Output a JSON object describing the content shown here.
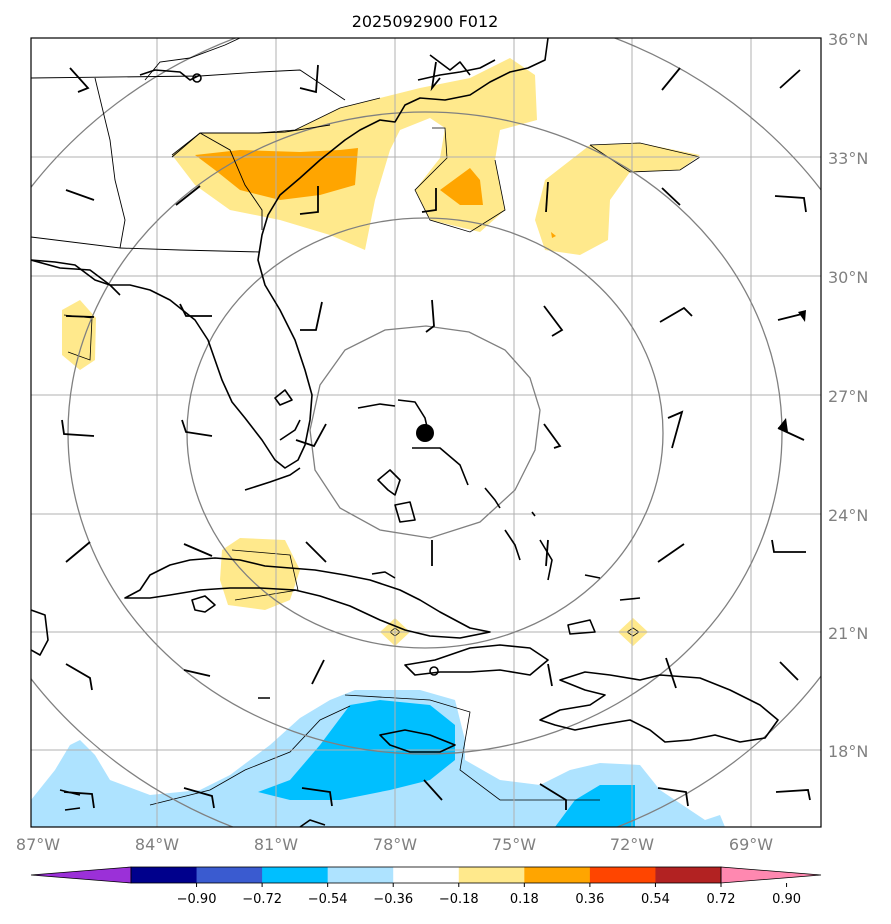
{
  "title": "2025092900 F012",
  "latitude_labels": [
    "36°N",
    "33°N",
    "30°N",
    "27°N",
    "24°N",
    "21°N",
    "18°N"
  ],
  "longitude_labels": [
    "87°W",
    "84°W",
    "81°W",
    "78°W",
    "75°W",
    "72°W",
    "69°W"
  ],
  "colorbar": {
    "tick_labels": [
      "−0.90",
      "−0.72",
      "−0.54",
      "−0.36",
      "−0.18",
      "0.18",
      "0.36",
      "0.54",
      "0.72",
      "0.90"
    ],
    "colors": [
      "#9b30d8",
      "#00008c",
      "#3a5bd0",
      "#00bfff",
      "#aee3ff",
      "#ffffff",
      "#ffe98c",
      "#ffa500",
      "#ff4500",
      "#b22222",
      "#ff88b0"
    ]
  },
  "colors": {
    "light_yellow": "#ffe98c",
    "orange": "#ffa500",
    "light_blue": "#aee3ff",
    "blue": "#00bfff",
    "grid": "#b0b0b0",
    "range_rings": "#808080"
  },
  "icons": {
    "storm_center": "filled-circle-marker",
    "wind_barbs": "wind-barb-symbols"
  }
}
